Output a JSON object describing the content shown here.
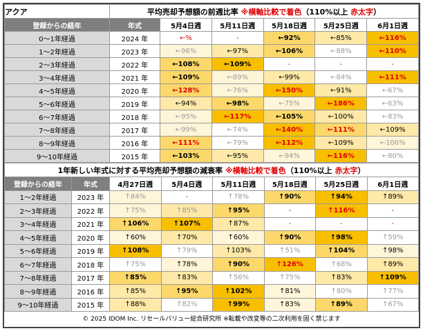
{
  "top": {
    "label": "アクア",
    "title_parts": [
      "平均売却予想額の前週比率 ",
      "※横軸比較で着色",
      "（110%以上 ",
      "赤太字",
      "）"
    ],
    "headers": [
      "登録からの経年",
      "年式",
      "5月4日週",
      "5月11日週",
      "5月18日週",
      "5月25日週",
      "6月1日週"
    ],
    "rows": [
      [
        "0～1年経過",
        "2024 年",
        "←%",
        "-",
        "←92%",
        "←85%",
        "←116%"
      ],
      [
        "1～2年経過",
        "2023 年",
        "←96%",
        "←97%",
        "←106%",
        "←88%",
        "←110%"
      ],
      [
        "2～3年経過",
        "2022 年",
        "←108%",
        "←109%",
        "-",
        "-",
        "-"
      ],
      [
        "3～4年経過",
        "2021 年",
        "←109%",
        "←89%",
        "←99%",
        "←84%",
        "←111%"
      ],
      [
        "4～5年経過",
        "2020 年",
        "←128%",
        "←76%",
        "←150%",
        "←91%",
        "←67%"
      ],
      [
        "5～6年経過",
        "2019 年",
        "←94%",
        "←98%",
        "←75%",
        "←186%",
        "←63%"
      ],
      [
        "6～7年経過",
        "2018 年",
        "←95%",
        "←117%",
        "←105%",
        "←100%",
        "←83%"
      ],
      [
        "7～8年経過",
        "2017 年",
        "←99%",
        "←74%",
        "←140%",
        "←111%",
        "←109%"
      ],
      [
        "8～9年経過",
        "2016 年",
        "←111%",
        "←79%",
        "←112%",
        "←109%",
        "←106%"
      ],
      [
        "9～10年経過",
        "2015 年",
        "←103%",
        "←95%",
        "←94%",
        "←116%",
        "←80%"
      ]
    ]
  },
  "bottom": {
    "title_parts": [
      "1年新しい年式に対する平均売却予想額の減衰率 ",
      "※横軸比較で着色",
      "（110%以上 ",
      "赤太字",
      "）"
    ],
    "headers": [
      "登録からの経年",
      "年式",
      "4月27日週",
      "5月4日週",
      "5月11日週",
      "5月18日週",
      "5月25日週",
      "6月1日週"
    ],
    "rows": [
      [
        "1～2年経過",
        "2023 年",
        "↑84%",
        "-",
        "↑78%",
        "↑90%",
        "↑94%",
        "↑89%"
      ],
      [
        "2～3年経過",
        "2022 年",
        "↑75%",
        "↑85%",
        "↑95%",
        "-",
        "↑116%",
        "-"
      ],
      [
        "3～4年経過",
        "2021 年",
        "↑106%",
        "↑107%",
        "↑87%",
        "-",
        "-",
        "-"
      ],
      [
        "4～5年経過",
        "2020 年",
        "↑60%",
        "↑70%",
        "↑60%",
        "↑90%",
        "↑98%",
        "↑59%"
      ],
      [
        "5～6年経過",
        "2019 年",
        "↑108%",
        "↑79%",
        "↑103%",
        "↑51%",
        "↑104%",
        "↑98%"
      ],
      [
        "6～7年経過",
        "2018 年",
        "↑75%",
        "↑78%",
        "↑90%",
        "↑126%",
        "↑68%",
        "↑89%"
      ],
      [
        "7～8年経過",
        "2017 年",
        "↑85%",
        "↑83%",
        "↑56%",
        "↑75%",
        "↑83%",
        "↑109%"
      ],
      [
        "8～9年経過",
        "2016 年",
        "↑85%",
        "↑95%",
        "↑102%",
        "↑81%",
        "↑80%",
        "↑77%"
      ],
      [
        "9～10年経過",
        "2015 年",
        "↑88%",
        "↑82%",
        "↑99%",
        "↑83%",
        "↑89%",
        "↑67%"
      ]
    ]
  },
  "footer": "© 2025 IDOM Inc. リセールバリュー総合研究所 ※転載や改変等の二次利用を固く禁じます"
}
